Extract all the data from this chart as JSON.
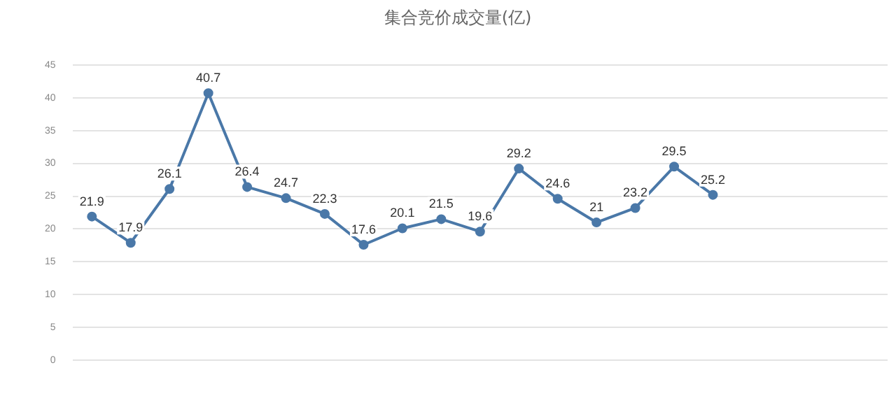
{
  "chart_data": {
    "type": "line",
    "title": "集合竞价成交量(亿)",
    "categories": [
      null,
      null,
      null,
      null,
      null,
      null,
      null,
      null,
      null,
      null,
      null,
      null,
      null,
      null,
      null,
      null,
      null,
      null,
      null,
      null,
      null
    ],
    "series": [
      {
        "color": "#4a78a8",
        "values": [
          21.9,
          17.9,
          26.1,
          40.7,
          26.4,
          24.7,
          22.3,
          17.6,
          20.1,
          21.5,
          19.6,
          29.2,
          24.6,
          21,
          23.2,
          29.5,
          25.2,
          null,
          null,
          null,
          null
        ]
      }
    ],
    "ylim": [
      0,
      45
    ],
    "yticks": [
      0,
      5,
      10,
      15,
      20,
      25,
      30,
      35,
      40,
      45
    ],
    "grid": "y",
    "legend": false,
    "marker": "circle",
    "line_style": "solid",
    "data_labels": true
  }
}
